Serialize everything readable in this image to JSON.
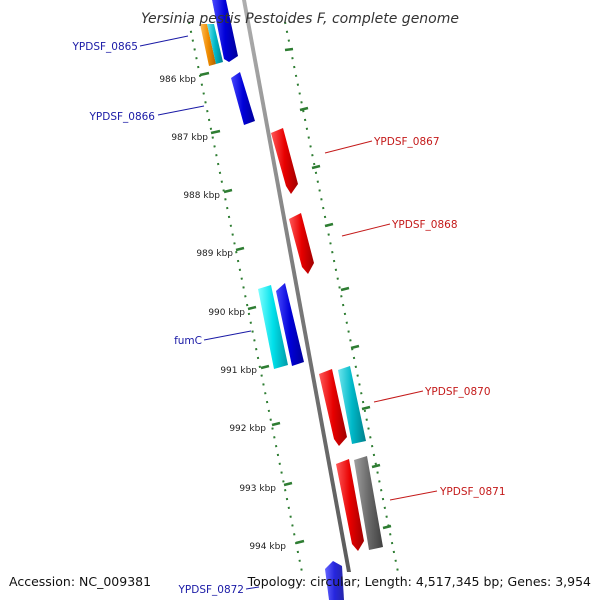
{
  "title": "Yersinia pestis Pestoides F, complete genome",
  "footer": {
    "accession": "Accession: NC_009381",
    "topology": "Topology: circular; Length: 4,517,345 bp; Genes: 3,954"
  },
  "colors": {
    "forward_label": "#1a1aa6",
    "reverse_label": "#c41a1a",
    "backbone": "#808080",
    "tick_major": "#2e7d32",
    "tick_minor": "#2e7d32"
  },
  "ticks": [
    "986 kbp",
    "987 kbp",
    "988 kbp",
    "989 kbp",
    "990 kbp",
    "991 kbp",
    "992 kbp",
    "993 kbp",
    "994 kbp"
  ],
  "labels": {
    "YPDSF_0865": "YPDSF_0865",
    "YPDSF_0866": "YPDSF_0866",
    "YPDSF_0867": "YPDSF_0867",
    "YPDSF_0868": "YPDSF_0868",
    "fumC": "fumC",
    "YPDSF_0870": "YPDSF_0870",
    "YPDSF_0871": "YPDSF_0871",
    "YPDSF_0872": "YPDSF_0872"
  },
  "features": [
    {
      "name": "YPDSF_0865",
      "strand": "forward",
      "color": "#0000e0",
      "labeled": true
    },
    {
      "name": "YPDSF_0865-cyan",
      "strand": "forward",
      "color": "#00bcd4",
      "labeled": false
    },
    {
      "name": "YPDSF_0865-orange",
      "strand": "forward",
      "color": "#f08c00",
      "labeled": false
    },
    {
      "name": "YPDSF_0866",
      "strand": "forward",
      "color": "#0000e0",
      "labeled": true
    },
    {
      "name": "YPDSF_0867",
      "strand": "reverse",
      "color": "#e00000",
      "labeled": true
    },
    {
      "name": "YPDSF_0868",
      "strand": "reverse",
      "color": "#e00000",
      "labeled": true
    },
    {
      "name": "fumC",
      "strand": "forward",
      "color": "#0000e0",
      "labeled": true
    },
    {
      "name": "fumC-cyan",
      "strand": "forward",
      "color": "#00e5ee",
      "labeled": false
    },
    {
      "name": "YPDSF_0870",
      "strand": "reverse",
      "color": "#e00000",
      "labeled": true
    },
    {
      "name": "YPDSF_0870-cyan",
      "strand": "reverse",
      "color": "#00bcd4",
      "labeled": false
    },
    {
      "name": "YPDSF_0871",
      "strand": "reverse",
      "color": "#e00000",
      "labeled": true
    },
    {
      "name": "YPDSF_0871-gray",
      "strand": "reverse",
      "color": "#666666",
      "labeled": false
    },
    {
      "name": "YPDSF_0872",
      "strand": "forward",
      "color": "#4040ff",
      "labeled": true
    }
  ]
}
